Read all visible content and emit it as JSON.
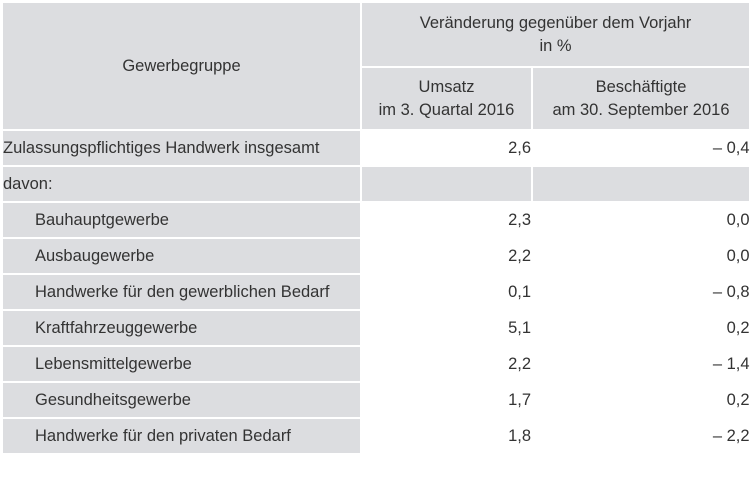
{
  "table": {
    "header": {
      "group": "Gewerbegruppe",
      "change_title_line1": "Veränderung gegenüber dem Vorjahr",
      "change_title_line2": "in %",
      "col_umsatz_line1": "Umsatz",
      "col_umsatz_line2": "im 3. Quartal 2016",
      "col_beschaeftigte_line1": "Beschäftigte",
      "col_beschaeftigte_line2": "am 30. September 2016"
    },
    "total_row": {
      "label": "Zulassungspflichtiges Handwerk insgesamt",
      "umsatz": "2,6",
      "beschaeftigte": "– 0,4"
    },
    "davon_label": "davon:",
    "rows": [
      {
        "label": "Bauhauptgewerbe",
        "umsatz": "2,3",
        "beschaeftigte": "0,0"
      },
      {
        "label": "Ausbaugewerbe",
        "umsatz": "2,2",
        "beschaeftigte": "0,0"
      },
      {
        "label": "Handwerke für den gewerblichen Bedarf",
        "umsatz": "0,1",
        "beschaeftigte": "– 0,8"
      },
      {
        "label": "Kraftfahrzeuggewerbe",
        "umsatz": "5,1",
        "beschaeftigte": "0,2"
      },
      {
        "label": "Lebensmittelgewerbe",
        "umsatz": "2,2",
        "beschaeftigte": "– 1,4"
      },
      {
        "label": "Gesundheitsgewerbe",
        "umsatz": "1,7",
        "beschaeftigte": "0,2"
      },
      {
        "label": "Handwerke für den privaten Bedarf",
        "umsatz": "1,8",
        "beschaeftigte": "– 2,2"
      }
    ]
  }
}
